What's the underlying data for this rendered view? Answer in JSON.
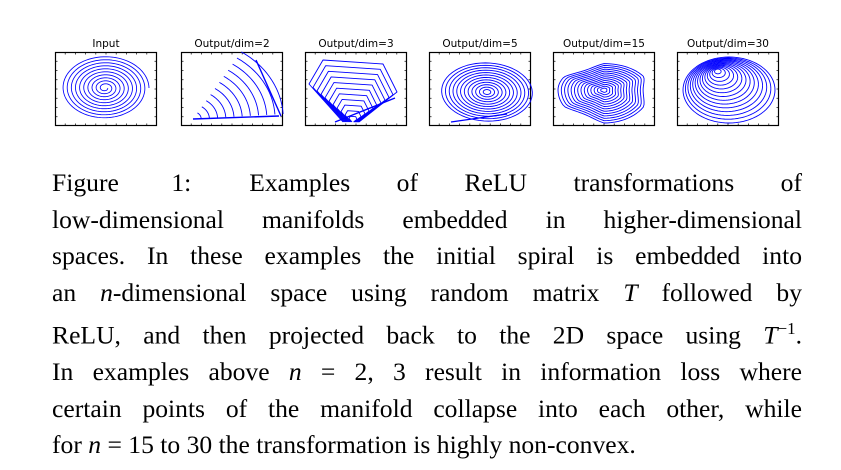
{
  "figure": {
    "panels": [
      {
        "title": "Input",
        "kind": "input"
      },
      {
        "title": "Output/dim=2",
        "kind": "dim2"
      },
      {
        "title": "Output/dim=3",
        "kind": "dim3"
      },
      {
        "title": "Output/dim=5",
        "kind": "dim5"
      },
      {
        "title": "Output/dim=15",
        "kind": "dim15"
      },
      {
        "title": "Output/dim=30",
        "kind": "dim30"
      }
    ],
    "line_color": "#0000ff"
  },
  "caption": {
    "label": "Figure 1:",
    "line1_rest": "Examples of ReLU transformations of",
    "line2": "low-dimensional manifolds embedded in higher-dimensional",
    "line3": "spaces. In these examples the initial spiral is embedded into",
    "line4_a": "an ",
    "line4_n": "n",
    "line4_b": "-dimensional space using random matrix ",
    "line4_T": "T",
    "line4_c": " followed by",
    "line5_a": "ReLU, and then projected back to the 2D space using ",
    "line5_T": "T",
    "line5_sup": "−1",
    "line5_b": ".",
    "line6_a": "In examples above ",
    "line6_n": "n",
    "line6_b": " = 2, 3 result in information loss where",
    "line7": "certain points of the manifold collapse into each other, while",
    "line8_a": "for ",
    "line8_n": "n",
    "line8_b": " = 15 to 30 the transformation is highly non-convex."
  }
}
